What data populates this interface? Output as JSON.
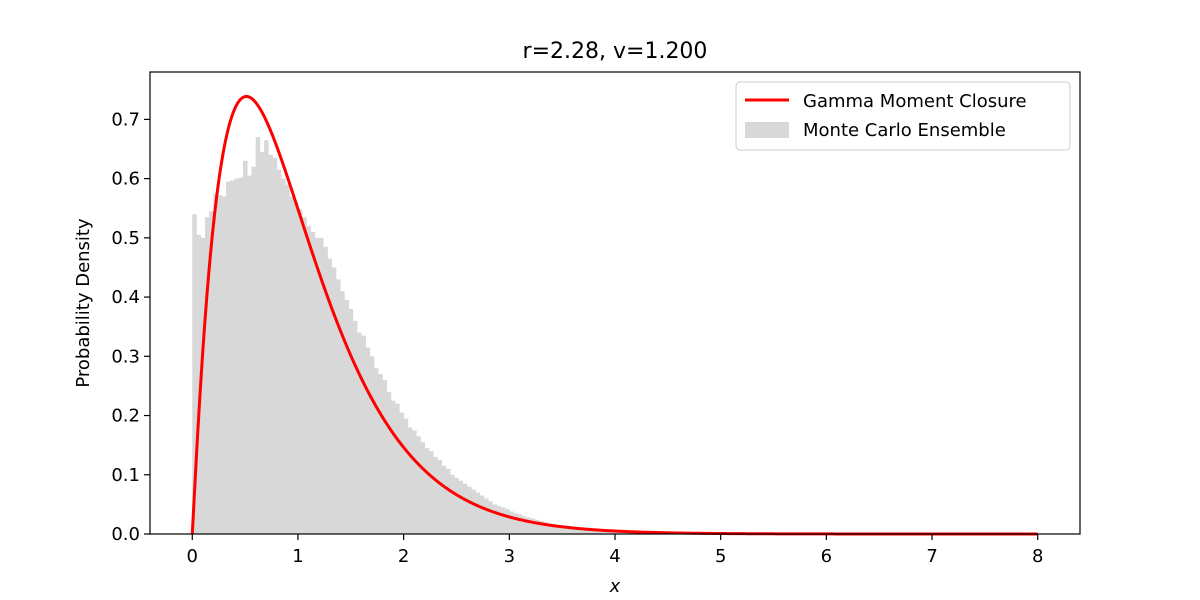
{
  "chart_data": {
    "type": "histogram+line",
    "title": "r=2.28, v=1.200",
    "xlabel": "x",
    "ylabel": "Probability Density",
    "xlim": [
      -0.4,
      8.4
    ],
    "ylim": [
      0,
      0.78
    ],
    "x_ticks": [
      "0",
      "1",
      "2",
      "3",
      "4",
      "5",
      "6",
      "7",
      "8"
    ],
    "y_ticks": [
      "0.0",
      "0.1",
      "0.2",
      "0.3",
      "0.4",
      "0.5",
      "0.6",
      "0.7"
    ],
    "legend": {
      "position": "top-right",
      "entries": [
        {
          "label": "Gamma Moment Closure",
          "color": "#ff0000",
          "kind": "line"
        },
        {
          "label": "Monte Carlo Ensemble",
          "color": "#d8d8d8",
          "kind": "patch"
        }
      ]
    },
    "histogram": {
      "name": "Monte Carlo Ensemble",
      "color": "#d8d8d8",
      "bin_width": 0.04,
      "bin_start": 0.0,
      "values": [
        0.54,
        0.505,
        0.5,
        0.535,
        0.545,
        0.575,
        0.572,
        0.57,
        0.595,
        0.597,
        0.6,
        0.602,
        0.63,
        0.605,
        0.62,
        0.67,
        0.645,
        0.665,
        0.64,
        0.635,
        0.615,
        0.6,
        0.59,
        0.57,
        0.56,
        0.548,
        0.535,
        0.52,
        0.51,
        0.5,
        0.5,
        0.485,
        0.465,
        0.45,
        0.43,
        0.41,
        0.395,
        0.38,
        0.36,
        0.34,
        0.335,
        0.315,
        0.3,
        0.28,
        0.27,
        0.26,
        0.24,
        0.225,
        0.22,
        0.205,
        0.195,
        0.18,
        0.175,
        0.165,
        0.155,
        0.145,
        0.14,
        0.13,
        0.125,
        0.115,
        0.11,
        0.1,
        0.095,
        0.09,
        0.085,
        0.08,
        0.075,
        0.07,
        0.065,
        0.06,
        0.055,
        0.05,
        0.047,
        0.045,
        0.042,
        0.038,
        0.035,
        0.033,
        0.03,
        0.028,
        0.026,
        0.024,
        0.022,
        0.02,
        0.018,
        0.017,
        0.015,
        0.014,
        0.013,
        0.012,
        0.011,
        0.01,
        0.0095,
        0.009,
        0.0085,
        0.008,
        0.0075,
        0.007,
        0.0065,
        0.006,
        0.0055,
        0.005,
        0.0046,
        0.0042,
        0.0039,
        0.0036,
        0.0033,
        0.003,
        0.0027,
        0.0025,
        0.0022,
        0.002,
        0.0018,
        0.0016,
        0.0014,
        0.0013,
        0.0012,
        0.0011,
        0.001,
        0.0009
      ]
    },
    "curve": {
      "name": "Gamma Moment Closure",
      "color": "#ff0000",
      "distribution": "gamma",
      "shape": 2.05,
      "scale": 0.4878,
      "x_range": [
        0,
        8
      ]
    }
  }
}
